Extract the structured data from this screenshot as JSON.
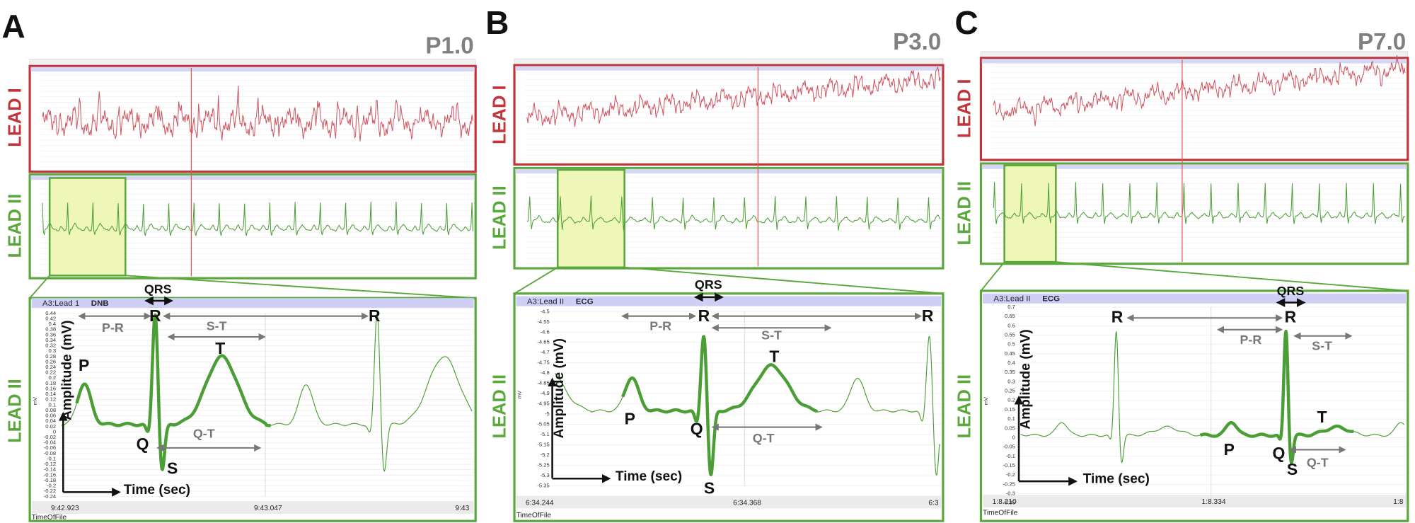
{
  "panels": [
    {
      "label": "A",
      "condition": "P1.0",
      "lead_top": "LEAD I",
      "lead_middle": "LEAD II",
      "lead_zoom": "LEAD II",
      "zoom": {
        "channel": "A3:Lead 1",
        "signal": "DNB",
        "unit": "mV",
        "y_axis_title": "Amplitude (mV)",
        "x_axis_title": "Time (sec)",
        "ylim": [
          -0.24,
          0.44
        ],
        "yticks": [
          0.44,
          0.42,
          0.4,
          0.38,
          0.36,
          0.34,
          0.32,
          0.3,
          0.28,
          0.26,
          0.24,
          0.22,
          0.2,
          0.18,
          0.16,
          0.14,
          0.12,
          0.1,
          0.08,
          0.06,
          0.04,
          0.02,
          0,
          -0.02,
          -0.04,
          -0.06,
          -0.08,
          -0.1,
          -0.12,
          -0.14,
          -0.16,
          -0.18,
          -0.2,
          -0.22,
          -0.24
        ],
        "xticks": [
          "9:42.923",
          "9:43.047",
          "9:43"
        ],
        "x_footer": "TimeOfFile",
        "annotations": [
          "QRS",
          "P-R",
          "S-T",
          "Q-T",
          "P",
          "Q",
          "R",
          "R",
          "S",
          "T"
        ]
      }
    },
    {
      "label": "B",
      "condition": "P3.0",
      "lead_top": "LEAD I",
      "lead_middle": "LEAD II",
      "lead_zoom": "LEAD II",
      "zoom": {
        "channel": "A3:Lead II",
        "signal": "ECG",
        "unit": "mV",
        "y_axis_title": "Amplitude (mV)",
        "x_axis_title": "Time (sec)",
        "ylim": [
          -5.35,
          -4.5
        ],
        "yticks": [
          -4.5,
          -4.55,
          -4.6,
          -4.65,
          -4.7,
          -4.75,
          -4.8,
          -4.85,
          -4.9,
          -4.95,
          -5,
          -5.05,
          -5.1,
          -5.15,
          -5.2,
          -5.25,
          -5.3,
          -5.35
        ],
        "xticks": [
          "6:34.244",
          "6:34.368",
          "6:3"
        ],
        "x_footer": "TimeOfFile",
        "annotations": [
          "QRS",
          "P-R",
          "S-T",
          "Q-T",
          "P",
          "Q",
          "R",
          "R",
          "S",
          "T"
        ]
      }
    },
    {
      "label": "C",
      "condition": "P7.0",
      "lead_top": "LEAD I",
      "lead_middle": "LEAD II",
      "lead_zoom": "LEAD II",
      "zoom": {
        "channel": "A3:Lead II",
        "signal": "ECG",
        "unit": "mV",
        "y_axis_title": "Amplitude (mV)",
        "x_axis_title": "Time (sec)",
        "ylim": [
          -0.35,
          0.7
        ],
        "yticks": [
          0.7,
          0.65,
          0.6,
          0.55,
          0.5,
          0.45,
          0.4,
          0.35,
          0.3,
          0.25,
          0.2,
          0.15,
          0.1,
          0.05,
          0,
          -0.05,
          -0.1,
          -0.15,
          -0.2,
          -0.25,
          -0.3,
          -0.35
        ],
        "xticks": [
          "1:8.210",
          "1:8.334",
          "1:8"
        ],
        "x_footer": "TimeOfFile",
        "annotations": [
          "QRS",
          "P-R",
          "S-T",
          "Q-T",
          "P",
          "Q",
          "R",
          "R",
          "S",
          "T"
        ]
      }
    }
  ]
}
